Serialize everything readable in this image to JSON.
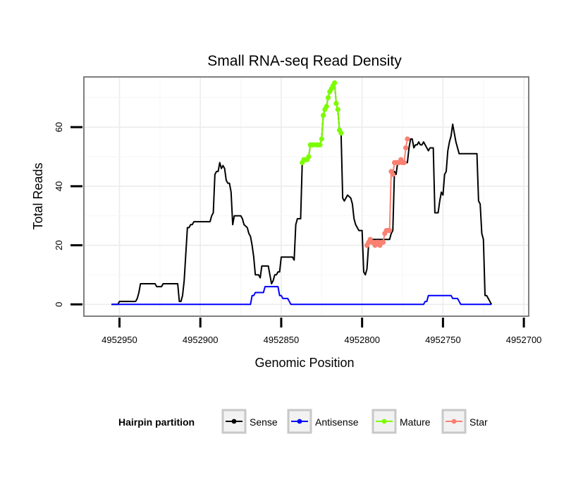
{
  "chart_data": {
    "type": "line",
    "title": "Small RNA-seq Read Density",
    "xlabel": "Genomic Position",
    "ylabel": "Total Reads",
    "xlim": [
      4952972,
      4952697
    ],
    "x_reversed": true,
    "ylim": [
      -4,
      77
    ],
    "grid": true,
    "x_ticks": [
      {
        "value": 4952950,
        "label": "4952950"
      },
      {
        "value": 4952900,
        "label": "4952900"
      },
      {
        "value": 4952850,
        "label": "4952850"
      },
      {
        "value": 4952800,
        "label": "4952800"
      },
      {
        "value": 4952750,
        "label": "4952750"
      },
      {
        "value": 4952700,
        "label": "4952700"
      }
    ],
    "y_ticks": [
      {
        "value": 0,
        "label": "0"
      },
      {
        "value": 20,
        "label": "20"
      },
      {
        "value": 40,
        "label": "40"
      },
      {
        "value": 60,
        "label": "60"
      }
    ],
    "legend": {
      "title": "Hairpin partition",
      "position": "bottom",
      "items": [
        {
          "name": "Sense",
          "color": "#000000"
        },
        {
          "name": "Antisense",
          "color": "#0000ff"
        },
        {
          "name": "Mature",
          "color": "#7cfc00"
        },
        {
          "name": "Star",
          "color": "#fa8072"
        }
      ]
    },
    "series": [
      {
        "name": "Sense",
        "color": "#000000",
        "markers": false,
        "points": [
          [
            4952955,
            0
          ],
          [
            4952951,
            0
          ],
          [
            4952950,
            1
          ],
          [
            4952940,
            1
          ],
          [
            4952939,
            2
          ],
          [
            4952938,
            4
          ],
          [
            4952937,
            7
          ],
          [
            4952928,
            7
          ],
          [
            4952927,
            6
          ],
          [
            4952924,
            6
          ],
          [
            4952923,
            7
          ],
          [
            4952914,
            7
          ],
          [
            4952913,
            1
          ],
          [
            4952912,
            1
          ],
          [
            4952911,
            3
          ],
          [
            4952910,
            8
          ],
          [
            4952909,
            17
          ],
          [
            4952908,
            26
          ],
          [
            4952907,
            26
          ],
          [
            4952906,
            27
          ],
          [
            4952905,
            27
          ],
          [
            4952904,
            28
          ],
          [
            4952896,
            28
          ],
          [
            4952894,
            28
          ],
          [
            4952893,
            30
          ],
          [
            4952892,
            31
          ],
          [
            4952891,
            44
          ],
          [
            4952890,
            45
          ],
          [
            4952889,
            45
          ],
          [
            4952888,
            48
          ],
          [
            4952887,
            46
          ],
          [
            4952886,
            47
          ],
          [
            4952885,
            46
          ],
          [
            4952884,
            42
          ],
          [
            4952883,
            41
          ],
          [
            4952882,
            41
          ],
          [
            4952881,
            38
          ],
          [
            4952880,
            27
          ],
          [
            4952879,
            30
          ],
          [
            4952875,
            30
          ],
          [
            4952874,
            29
          ],
          [
            4952873,
            27
          ],
          [
            4952871,
            26
          ],
          [
            4952870,
            24
          ],
          [
            4952869,
            23
          ],
          [
            4952868,
            20
          ],
          [
            4952867,
            16
          ],
          [
            4952866,
            10
          ],
          [
            4952864,
            10
          ],
          [
            4952863,
            9
          ],
          [
            4952862,
            13
          ],
          [
            4952858,
            13
          ],
          [
            4952857,
            10
          ],
          [
            4952856,
            7
          ],
          [
            4952855,
            8
          ],
          [
            4952854,
            10
          ],
          [
            4952853,
            10
          ],
          [
            4952852,
            11
          ],
          [
            4952851,
            11
          ],
          [
            4952850,
            16
          ],
          [
            4952843,
            16
          ],
          [
            4952842,
            15
          ],
          [
            4952841,
            27
          ],
          [
            4952840,
            29
          ],
          [
            4952838,
            29
          ],
          [
            4952837,
            48
          ],
          [
            4952836,
            49
          ],
          [
            4952834,
            49
          ],
          [
            4952833,
            50
          ],
          [
            4952832,
            54
          ],
          [
            4952830,
            54
          ],
          [
            4952826,
            54
          ],
          [
            4952825,
            56
          ],
          [
            4952824,
            64
          ],
          [
            4952823,
            66
          ],
          [
            4952822,
            67
          ],
          [
            4952821,
            70
          ],
          [
            4952820,
            72
          ],
          [
            4952819,
            73
          ],
          [
            4952818,
            74
          ],
          [
            4952817,
            75
          ],
          [
            4952816,
            68
          ],
          [
            4952815,
            66
          ],
          [
            4952814,
            59
          ],
          [
            4952813,
            58
          ],
          [
            4952812,
            36
          ],
          [
            4952811,
            35
          ],
          [
            4952810,
            36
          ],
          [
            4952809,
            37
          ],
          [
            4952807,
            36
          ],
          [
            4952806,
            34
          ],
          [
            4952805,
            29
          ],
          [
            4952804,
            27
          ],
          [
            4952803,
            26
          ],
          [
            4952802,
            25
          ],
          [
            4952800,
            25
          ],
          [
            4952799,
            11
          ],
          [
            4952798,
            10
          ],
          [
            4952797,
            12
          ],
          [
            4952796,
            20
          ],
          [
            4952795,
            22
          ],
          [
            4952783,
            22
          ],
          [
            4952782,
            24
          ],
          [
            4952781,
            25
          ],
          [
            4952780,
            45
          ],
          [
            4952779,
            44
          ],
          [
            4952778,
            48
          ],
          [
            4952774,
            48
          ],
          [
            4952772,
            48
          ],
          [
            4952771,
            53
          ],
          [
            4952770,
            56
          ],
          [
            4952769,
            56
          ],
          [
            4952768,
            53
          ],
          [
            4952767,
            54
          ],
          [
            4952766,
            54
          ],
          [
            4952765,
            55
          ],
          [
            4952764,
            54
          ],
          [
            4952763,
            54
          ],
          [
            4952762,
            55
          ],
          [
            4952761,
            54
          ],
          [
            4952760,
            53
          ],
          [
            4952759,
            52
          ],
          [
            4952758,
            53
          ],
          [
            4952756,
            53
          ],
          [
            4952755,
            31
          ],
          [
            4952753,
            31
          ],
          [
            4952752,
            35
          ],
          [
            4952751,
            38
          ],
          [
            4952750,
            37
          ],
          [
            4952749,
            44
          ],
          [
            4952748,
            45
          ],
          [
            4952747,
            52
          ],
          [
            4952746,
            55
          ],
          [
            4952745,
            57
          ],
          [
            4952744,
            61
          ],
          [
            4952743,
            58
          ],
          [
            4952742,
            55
          ],
          [
            4952741,
            53
          ],
          [
            4952740,
            51
          ],
          [
            4952730,
            51
          ],
          [
            4952729,
            51
          ],
          [
            4952728,
            35
          ],
          [
            4952727,
            34
          ],
          [
            4952726,
            24
          ],
          [
            4952725,
            22
          ],
          [
            4952724,
            3
          ],
          [
            4952723,
            3
          ],
          [
            4952722,
            2
          ],
          [
            4952721,
            1
          ],
          [
            4952720,
            0
          ]
        ]
      },
      {
        "name": "Antisense",
        "color": "#0000ff",
        "markers": false,
        "points": [
          [
            4952955,
            0
          ],
          [
            4952869,
            0
          ],
          [
            4952868,
            3
          ],
          [
            4952867,
            3
          ],
          [
            4952866,
            4
          ],
          [
            4952861,
            4
          ],
          [
            4952860,
            6
          ],
          [
            4952852,
            6
          ],
          [
            4952851,
            3
          ],
          [
            4952850,
            3
          ],
          [
            4952849,
            2
          ],
          [
            4952846,
            2
          ],
          [
            4952845,
            1
          ],
          [
            4952844,
            0
          ],
          [
            4952762,
            0
          ],
          [
            4952761,
            1
          ],
          [
            4952760,
            1
          ],
          [
            4952759,
            3
          ],
          [
            4952745,
            3
          ],
          [
            4952744,
            2
          ],
          [
            4952741,
            2
          ],
          [
            4952740,
            1
          ],
          [
            4952739,
            0
          ],
          [
            4952720,
            0
          ]
        ]
      },
      {
        "name": "Mature",
        "color": "#7cfc00",
        "markers": true,
        "points": [
          [
            4952837,
            48
          ],
          [
            4952836,
            49
          ],
          [
            4952835,
            49
          ],
          [
            4952834,
            49
          ],
          [
            4952833,
            50
          ],
          [
            4952832,
            54
          ],
          [
            4952831,
            54
          ],
          [
            4952830,
            54
          ],
          [
            4952828,
            54
          ],
          [
            4952827,
            54
          ],
          [
            4952826,
            54
          ],
          [
            4952825,
            56
          ],
          [
            4952824,
            64
          ],
          [
            4952823,
            66
          ],
          [
            4952822,
            67
          ],
          [
            4952821,
            70
          ],
          [
            4952820,
            72
          ],
          [
            4952819,
            73
          ],
          [
            4952818,
            74
          ],
          [
            4952817,
            75
          ],
          [
            4952816,
            68
          ],
          [
            4952815,
            66
          ],
          [
            4952814,
            59
          ],
          [
            4952813,
            58
          ]
        ]
      },
      {
        "name": "Star",
        "color": "#fa8072",
        "markers": true,
        "points": [
          [
            4952797,
            20
          ],
          [
            4952796,
            21
          ],
          [
            4952795,
            22
          ],
          [
            4952794,
            21
          ],
          [
            4952793,
            21
          ],
          [
            4952792,
            20
          ],
          [
            4952791,
            21
          ],
          [
            4952790,
            21
          ],
          [
            4952789,
            20
          ],
          [
            4952788,
            21
          ],
          [
            4952787,
            21
          ],
          [
            4952786,
            24
          ],
          [
            4952785,
            25
          ],
          [
            4952784,
            25
          ],
          [
            4952783,
            25
          ],
          [
            4952782,
            45
          ],
          [
            4952781,
            44
          ],
          [
            4952780,
            48
          ],
          [
            4952779,
            48
          ],
          [
            4952778,
            48
          ],
          [
            4952777,
            48
          ],
          [
            4952776,
            49
          ],
          [
            4952775,
            48
          ],
          [
            4952774,
            48
          ],
          [
            4952773,
            53
          ],
          [
            4952772,
            56
          ]
        ]
      }
    ]
  }
}
